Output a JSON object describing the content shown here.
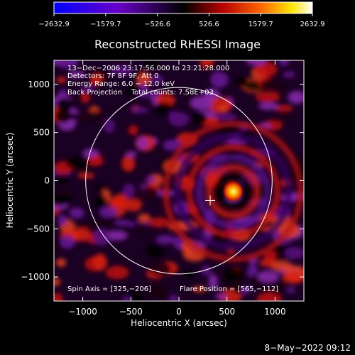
{
  "chart_data": {
    "type": "heatmap",
    "title": "Reconstructed RHESSI Image",
    "xlabel": "Heliocentric X (arcsec)",
    "ylabel": "Heliocentric Y (arcsec)",
    "xlim": [
      -1300,
      1300
    ],
    "ylim": [
      -1250,
      1250
    ],
    "x_ticks": [
      -1000,
      -500,
      0,
      500,
      1000
    ],
    "x_tick_labels": [
      "−1000",
      "−500",
      "0",
      "500",
      "1000"
    ],
    "y_ticks": [
      1000,
      500,
      0,
      -500,
      -1000
    ],
    "y_tick_labels": [
      "1000",
      "500",
      "0",
      "−500",
      "−1000"
    ],
    "colorbar": {
      "min": -2632.9,
      "max": 2632.9,
      "tick_values": [
        -2632.9,
        -1579.7,
        -526.6,
        526.6,
        1579.7,
        2632.9
      ],
      "tick_labels": [
        "−2632.9",
        "−1579.7",
        "−526.6",
        "526.6",
        "1579.7",
        "2632.9"
      ]
    },
    "annotations": [
      "13−Dec−2006 23:17:56.000 to 23:21:28.000",
      "Detectors: 7F 8F 9F, Att 0",
      "Energy Range: 6.0 − 12.0 keV",
      "Back Projection    Total counts: 7.58E+03"
    ],
    "spin_axis_label": "Spin Axis = [325,−206]",
    "flare_position_label": "Flare Position = [565,−112]",
    "spin_axis": [
      325,
      -206
    ],
    "flare_position": [
      565,
      -112
    ],
    "solar_limb_radius": 970,
    "solar_limb_center": [
      0,
      0
    ]
  },
  "footer": {
    "timestamp": "8−May−2022 09:12"
  },
  "colors": {
    "background": "#000000",
    "foreground": "#ffffff",
    "colormap": [
      "#0000ff",
      "#6a00c8",
      "#000000",
      "#b40000",
      "#ff6400",
      "#ffe600",
      "#ffffff"
    ]
  }
}
